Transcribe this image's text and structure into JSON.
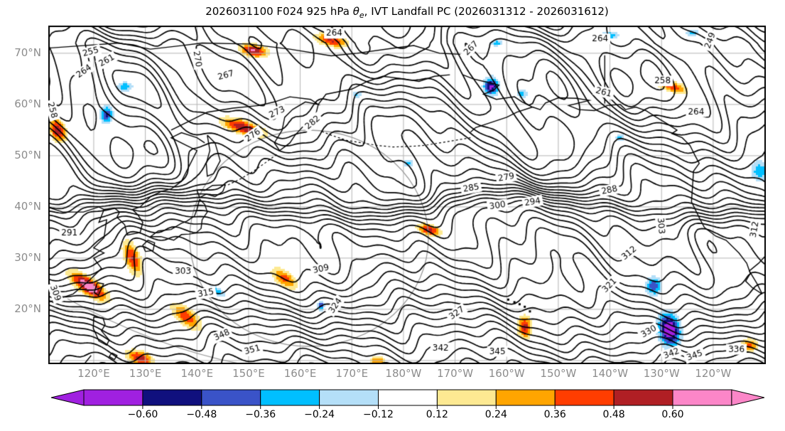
{
  "title": {
    "prefix": "2026031100 F024 925 hPa ",
    "theta_symbol": "θ",
    "theta_subscript": "e",
    "suffix": ", IVT Landfall PC (2026031312 - 2026031612)"
  },
  "axes": {
    "lat_ticks": [
      {
        "value": 70,
        "label": "70°N"
      },
      {
        "value": 60,
        "label": "60°N"
      },
      {
        "value": 50,
        "label": "50°N"
      },
      {
        "value": 40,
        "label": "40°N"
      },
      {
        "value": 30,
        "label": "30°N"
      },
      {
        "value": 20,
        "label": "20°N"
      }
    ],
    "lon_ticks": [
      {
        "value": 120,
        "label": "120°E"
      },
      {
        "value": 130,
        "label": "130°E"
      },
      {
        "value": 140,
        "label": "140°E"
      },
      {
        "value": 150,
        "label": "150°E"
      },
      {
        "value": 160,
        "label": "160°E"
      },
      {
        "value": 170,
        "label": "170°E"
      },
      {
        "value": 180,
        "label": "180°W"
      },
      {
        "value": 190,
        "label": "170°W"
      },
      {
        "value": 200,
        "label": "160°W"
      },
      {
        "value": 210,
        "label": "150°W"
      },
      {
        "value": 220,
        "label": "140°W"
      },
      {
        "value": 230,
        "label": "130°W"
      },
      {
        "value": 240,
        "label": "120°W"
      }
    ],
    "lon_range": [
      111.2,
      250.2
    ],
    "lat_range": [
      9.3,
      75.4
    ],
    "grid_lat_lines": [
      10,
      20,
      30,
      40,
      50,
      60,
      70
    ],
    "grid_color": "#b3b3b3",
    "tick_label_color": "#8c8c8c",
    "border_color": "#000000",
    "ring_color": "#999999"
  },
  "chart_data": {
    "type": "contour_map_with_filled_anomalies",
    "contour_variable": "925 hPa equivalent potential temperature theta-e (K)",
    "contour_interval": 3,
    "contour_level_min": 246,
    "contour_level_max": 360,
    "contour_color": "#000000",
    "contour_labels": [
      {
        "v": 255,
        "lon": 119.4,
        "lat": 70.3,
        "rot": -15
      },
      {
        "v": 261,
        "lon": 122.5,
        "lat": 68.6,
        "rot": -30
      },
      {
        "v": 264,
        "lon": 118.1,
        "lat": 66.5,
        "rot": -35
      },
      {
        "v": 258,
        "lon": 112.0,
        "lat": 58.9,
        "rot": 75
      },
      {
        "v": 270,
        "lon": 140.1,
        "lat": 68.9,
        "rot": 80
      },
      {
        "v": 267,
        "lon": 145.6,
        "lat": 65.7,
        "rot": -15
      },
      {
        "v": 273,
        "lon": 155.5,
        "lat": 58.5,
        "rot": -25
      },
      {
        "v": 276,
        "lon": 150.8,
        "lat": 54.0,
        "rot": -35
      },
      {
        "v": 282,
        "lon": 162.4,
        "lat": 56.5,
        "rot": -40
      },
      {
        "v": 264,
        "lon": 166.6,
        "lat": 73.9,
        "rot": 0
      },
      {
        "v": 267,
        "lon": 193.1,
        "lat": 71.0,
        "rot": -45
      },
      {
        "v": 249,
        "lon": 239.4,
        "lat": 72.5,
        "rot": -70
      },
      {
        "v": 258,
        "lon": 230.2,
        "lat": 64.6,
        "rot": 0
      },
      {
        "v": 261,
        "lon": 218.8,
        "lat": 62.4,
        "rot": 15
      },
      {
        "v": 264,
        "lon": 218.1,
        "lat": 72.8,
        "rot": 0
      },
      {
        "v": 264,
        "lon": 236.7,
        "lat": 58.6,
        "rot": 0
      },
      {
        "v": 279,
        "lon": 199.9,
        "lat": 45.8,
        "rot": -10
      },
      {
        "v": 285,
        "lon": 193.1,
        "lat": 43.7,
        "rot": -10
      },
      {
        "v": 288,
        "lon": 219.9,
        "lat": 43.3,
        "rot": -12
      },
      {
        "v": 294,
        "lon": 205.0,
        "lat": 41.0,
        "rot": -10
      },
      {
        "v": 300,
        "lon": 198.2,
        "lat": 40.3,
        "rot": -8
      },
      {
        "v": 291,
        "lon": 115.3,
        "lat": 34.9,
        "rot": 0
      },
      {
        "v": 303,
        "lon": 137.3,
        "lat": 27.4,
        "rot": 0
      },
      {
        "v": 309,
        "lon": 164.0,
        "lat": 27.9,
        "rot": -12
      },
      {
        "v": 309,
        "lon": 112.6,
        "lat": 23.2,
        "rot": 70
      },
      {
        "v": 315,
        "lon": 141.7,
        "lat": 23.2,
        "rot": -10
      },
      {
        "v": 324,
        "lon": 166.8,
        "lat": 20.7,
        "rot": -55
      },
      {
        "v": 327,
        "lon": 190.3,
        "lat": 19.3,
        "rot": -35
      },
      {
        "v": 342,
        "lon": 187.2,
        "lat": 12.5,
        "rot": 0
      },
      {
        "v": 345,
        "lon": 198.2,
        "lat": 11.8,
        "rot": 0
      },
      {
        "v": 348,
        "lon": 144.8,
        "lat": 15.0,
        "rot": -25
      },
      {
        "v": 351,
        "lon": 150.7,
        "lat": 12.1,
        "rot": -15
      },
      {
        "v": 303,
        "lon": 229.9,
        "lat": 36.3,
        "rot": 85
      },
      {
        "v": 312,
        "lon": 223.7,
        "lat": 31.0,
        "rot": -40
      },
      {
        "v": 321,
        "lon": 219.9,
        "lat": 24.7,
        "rot": -45
      },
      {
        "v": 330,
        "lon": 227.5,
        "lat": 15.7,
        "rot": -30
      },
      {
        "v": 336,
        "lon": 244.5,
        "lat": 12.2,
        "rot": 0
      },
      {
        "v": 342,
        "lon": 231.9,
        "lat": 11.4,
        "rot": -20
      },
      {
        "v": 345,
        "lon": 236.4,
        "lat": 11.0,
        "rot": -20
      },
      {
        "v": 312,
        "lon": 248.0,
        "lat": 35.6,
        "rot": -80
      }
    ],
    "shading_variable": "IVT Landfall PC anomaly",
    "shading_levels": [
      0.12,
      0.24,
      0.36,
      0.48,
      0.6
    ],
    "positive_colors": [
      "#FDE992",
      "#FFA500",
      "#FF3D00",
      "#B01F24",
      "#FC86C8"
    ],
    "negative_colors": [
      "#B4DFF8",
      "#00BFFF",
      "#3A53C8",
      "#10107E",
      "#A020E0"
    ],
    "anomaly_blobs": [
      {
        "lon": 119.0,
        "lat": 24.5,
        "amp": 0.78,
        "sx": 3.0,
        "sy": 1.1,
        "rot": -35
      },
      {
        "lon": 129.0,
        "lat": 10.5,
        "amp": 0.55,
        "sx": 2.0,
        "sy": 1.0,
        "rot": -20
      },
      {
        "lon": 138.0,
        "lat": 18.5,
        "amp": 0.45,
        "sx": 2.6,
        "sy": 1.2,
        "rot": -40
      },
      {
        "lon": 127.5,
        "lat": 30.0,
        "amp": 0.5,
        "sx": 1.1,
        "sy": 2.6,
        "rot": 20
      },
      {
        "lon": 113.0,
        "lat": 55.0,
        "amp": 0.6,
        "sx": 1.1,
        "sy": 1.8,
        "rot": 25
      },
      {
        "lon": 149.0,
        "lat": 55.5,
        "amp": 0.6,
        "sx": 3.2,
        "sy": 1.0,
        "rot": -18
      },
      {
        "lon": 151.0,
        "lat": 70.5,
        "amp": 0.62,
        "sx": 2.0,
        "sy": 0.9,
        "rot": -10
      },
      {
        "lon": 166.0,
        "lat": 72.5,
        "amp": 0.5,
        "sx": 2.4,
        "sy": 0.9,
        "rot": -12
      },
      {
        "lon": 157.0,
        "lat": 26.0,
        "amp": 0.42,
        "sx": 2.2,
        "sy": 1.1,
        "rot": -35
      },
      {
        "lon": 185.0,
        "lat": 35.5,
        "amp": 0.55,
        "sx": 1.7,
        "sy": 0.8,
        "rot": -15
      },
      {
        "lon": 203.5,
        "lat": 16.5,
        "amp": 0.55,
        "sx": 1.0,
        "sy": 1.6,
        "rot": 0
      },
      {
        "lon": 232.0,
        "lat": 63.5,
        "amp": 0.45,
        "sx": 2.3,
        "sy": 0.8,
        "rot": -15
      },
      {
        "lon": 175.0,
        "lat": 10.0,
        "amp": 0.35,
        "sx": 1.2,
        "sy": 0.7,
        "rot": 0
      },
      {
        "lon": 247.0,
        "lat": 13.0,
        "amp": 0.4,
        "sx": 1.3,
        "sy": 1.0,
        "rot": 0
      },
      {
        "lon": 122.5,
        "lat": 58.0,
        "amp": -0.5,
        "sx": 0.9,
        "sy": 1.3,
        "rot": 0
      },
      {
        "lon": 126.0,
        "lat": 63.5,
        "amp": -0.35,
        "sx": 1.2,
        "sy": 0.7,
        "rot": 0
      },
      {
        "lon": 197.0,
        "lat": 63.5,
        "amp": -0.65,
        "sx": 1.1,
        "sy": 1.3,
        "rot": 0
      },
      {
        "lon": 203.0,
        "lat": 62.0,
        "amp": -0.3,
        "sx": 0.8,
        "sy": 0.7,
        "rot": 0
      },
      {
        "lon": 231.5,
        "lat": 16.0,
        "amp": -0.8,
        "sx": 1.5,
        "sy": 2.4,
        "rot": 10
      },
      {
        "lon": 228.5,
        "lat": 24.5,
        "amp": -0.45,
        "sx": 1.2,
        "sy": 1.4,
        "rot": 0
      },
      {
        "lon": 249.0,
        "lat": 47.0,
        "amp": -0.32,
        "sx": 1.4,
        "sy": 1.7,
        "rot": 0
      },
      {
        "lon": 144.0,
        "lat": 23.5,
        "amp": -0.3,
        "sx": 1.3,
        "sy": 0.6,
        "rot": -35
      },
      {
        "lon": 164.0,
        "lat": 20.7,
        "amp": -0.5,
        "sx": 0.5,
        "sy": 0.7,
        "rot": 0
      },
      {
        "lon": 181.0,
        "lat": 48.5,
        "amp": -0.26,
        "sx": 0.9,
        "sy": 0.6,
        "rot": 0
      },
      {
        "lon": 222.0,
        "lat": 53.5,
        "amp": -0.3,
        "sx": 0.7,
        "sy": 0.6,
        "rot": 0
      },
      {
        "lon": 171.0,
        "lat": 62.0,
        "amp": -0.26,
        "sx": 0.8,
        "sy": 0.55,
        "rot": 0
      },
      {
        "lon": 220.0,
        "lat": 73.5,
        "amp": -0.35,
        "sx": 1.4,
        "sy": 0.6,
        "rot": 0
      },
      {
        "lon": 236.0,
        "lat": 74.0,
        "amp": -0.3,
        "sx": 1.1,
        "sy": 0.5,
        "rot": 0
      },
      {
        "lon": 198.0,
        "lat": 72.0,
        "amp": -0.3,
        "sx": 1.0,
        "sy": 0.5,
        "rot": 0
      }
    ],
    "colorbar": {
      "boundaries": [
        -0.6,
        -0.48,
        -0.36,
        -0.24,
        -0.12,
        0.12,
        0.24,
        0.36,
        0.48,
        0.6
      ],
      "tick_labels": [
        "−0.60",
        "−0.48",
        "−0.36",
        "−0.24",
        "−0.12",
        "0.12",
        "0.24",
        "0.36",
        "0.48",
        "0.60"
      ],
      "cell_colors": [
        "#A020E0",
        "#10107E",
        "#3A53C8",
        "#00BFFF",
        "#B4DFF8",
        "#FFFFFF",
        "#FDE992",
        "#FFA500",
        "#FF3D00",
        "#B01F24",
        "#FC86C8"
      ],
      "extend": "both"
    }
  }
}
